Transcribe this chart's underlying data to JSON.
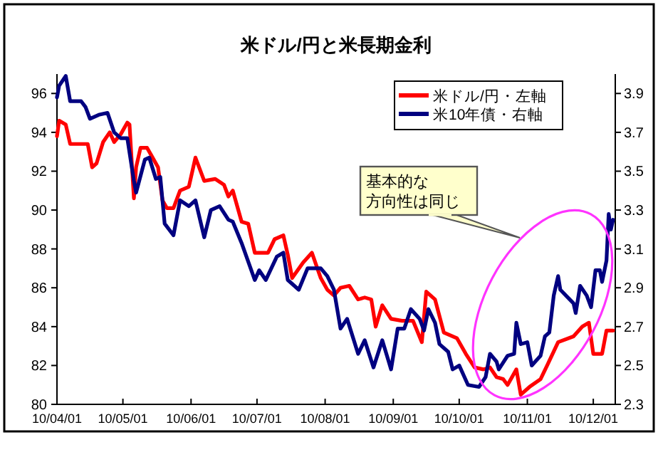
{
  "chart_data": {
    "type": "line",
    "title": "米ドル/円と米長期金利",
    "xlim": [
      "2010-04-01",
      "2010-12-11"
    ],
    "xticks": [
      {
        "value": "2010-04-01",
        "label": "10/04/01"
      },
      {
        "value": "2010-05-01",
        "label": "10/05/01"
      },
      {
        "value": "2010-06-01",
        "label": "10/06/01"
      },
      {
        "value": "2010-07-01",
        "label": "10/07/01"
      },
      {
        "value": "2010-08-01",
        "label": "10/08/01"
      },
      {
        "value": "2010-09-01",
        "label": "10/09/01"
      },
      {
        "value": "2010-10-01",
        "label": "10/10/01"
      },
      {
        "value": "2010-11-01",
        "label": "10/11/01"
      },
      {
        "value": "2010-12-01",
        "label": "10/12/01"
      }
    ],
    "ylim": [
      80,
      97
    ],
    "yticks": [
      80,
      82,
      84,
      86,
      88,
      90,
      92,
      94,
      96
    ],
    "y2lim": [
      2.3,
      4.0
    ],
    "y2ticks": [
      2.3,
      2.5,
      2.7,
      2.9,
      3.1,
      3.3,
      3.5,
      3.7,
      3.9
    ],
    "grid": false,
    "legend": "top right",
    "marker": "none",
    "line_style": "solid",
    "annotations": [
      "基本的な",
      "方向性は同じ"
    ],
    "series": [
      {
        "name": "米ドル/円・左軸",
        "color": "#ff0000",
        "x": [
          "2010-04-01",
          "2010-04-02",
          "2010-04-05",
          "2010-04-07",
          "2010-04-15",
          "2010-04-17",
          "2010-04-19",
          "2010-04-22",
          "2010-04-25",
          "2010-04-27",
          "2010-04-30",
          "2010-05-03",
          "2010-05-04",
          "2010-05-06",
          "2010-05-07",
          "2010-05-09",
          "2010-05-12",
          "2010-05-14",
          "2010-05-17",
          "2010-05-19",
          "2010-05-21",
          "2010-05-24",
          "2010-05-27",
          "2010-05-31",
          "2010-06-03",
          "2010-06-07",
          "2010-06-12",
          "2010-06-16",
          "2010-06-18",
          "2010-06-20",
          "2010-06-24",
          "2010-06-27",
          "2010-06-30",
          "2010-07-06",
          "2010-07-09",
          "2010-07-13",
          "2010-07-15",
          "2010-07-17",
          "2010-07-22",
          "2010-07-26",
          "2010-07-30",
          "2010-08-02",
          "2010-08-05",
          "2010-08-08",
          "2010-08-12",
          "2010-08-16",
          "2010-08-19",
          "2010-08-22",
          "2010-08-24",
          "2010-08-27",
          "2010-08-31",
          "2010-09-05",
          "2010-09-10",
          "2010-09-14",
          "2010-09-16",
          "2010-09-20",
          "2010-09-24",
          "2010-09-30",
          "2010-10-04",
          "2010-10-08",
          "2010-10-12",
          "2010-10-15",
          "2010-10-18",
          "2010-10-21",
          "2010-10-23",
          "2010-10-27",
          "2010-10-29",
          "2010-11-02",
          "2010-11-07",
          "2010-11-10",
          "2010-11-15",
          "2010-11-22",
          "2010-11-26",
          "2010-11-29",
          "2010-12-01",
          "2010-12-05",
          "2010-12-07",
          "2010-12-10"
        ],
        "values": [
          93.8,
          94.6,
          94.4,
          93.4,
          93.4,
          92.2,
          92.4,
          93.5,
          94.0,
          93.5,
          93.9,
          94.5,
          94.4,
          90.6,
          92.2,
          93.2,
          93.2,
          92.8,
          92.2,
          90.5,
          90.1,
          90.1,
          91.0,
          91.2,
          92.7,
          91.5,
          91.6,
          91.3,
          90.7,
          91.0,
          89.4,
          89.3,
          87.8,
          87.8,
          88.5,
          88.7,
          87.7,
          86.5,
          87.3,
          87.8,
          86.5,
          85.9,
          85.6,
          86.0,
          86.1,
          85.4,
          85.5,
          85.4,
          84.0,
          85.1,
          84.4,
          84.3,
          84.3,
          83.2,
          85.8,
          85.4,
          83.7,
          83.4,
          82.6,
          81.9,
          81.8,
          81.9,
          81.4,
          81.3,
          81.0,
          81.8,
          80.5,
          80.9,
          81.3,
          82.0,
          83.2,
          83.5,
          84.0,
          84.2,
          82.6,
          82.6,
          83.8,
          83.8
        ]
      },
      {
        "name": "米10年債・右軸",
        "color": "#000080",
        "axis": "y2",
        "x": [
          "2010-04-01",
          "2010-04-02",
          "2010-04-05",
          "2010-04-07",
          "2010-04-12",
          "2010-04-14",
          "2010-04-16",
          "2010-04-20",
          "2010-04-24",
          "2010-04-27",
          "2010-04-30",
          "2010-05-03",
          "2010-05-06",
          "2010-05-07",
          "2010-05-11",
          "2010-05-13",
          "2010-05-16",
          "2010-05-18",
          "2010-05-20",
          "2010-05-24",
          "2010-05-27",
          "2010-05-31",
          "2010-06-03",
          "2010-06-07",
          "2010-06-10",
          "2010-06-14",
          "2010-06-18",
          "2010-06-20",
          "2010-06-24",
          "2010-06-30",
          "2010-07-02",
          "2010-07-05",
          "2010-07-10",
          "2010-07-13",
          "2010-07-15",
          "2010-07-20",
          "2010-07-24",
          "2010-07-30",
          "2010-08-02",
          "2010-08-05",
          "2010-08-08",
          "2010-08-11",
          "2010-08-16",
          "2010-08-19",
          "2010-08-23",
          "2010-08-27",
          "2010-08-31",
          "2010-09-03",
          "2010-09-06",
          "2010-09-09",
          "2010-09-13",
          "2010-09-15",
          "2010-09-17",
          "2010-09-20",
          "2010-09-22",
          "2010-09-26",
          "2010-09-28",
          "2010-10-01",
          "2010-10-05",
          "2010-10-10",
          "2010-10-13",
          "2010-10-15",
          "2010-10-18",
          "2010-10-19",
          "2010-10-23",
          "2010-10-26",
          "2010-10-27",
          "2010-10-29",
          "2010-11-01",
          "2010-11-03",
          "2010-11-07",
          "2010-11-09",
          "2010-11-11",
          "2010-11-13",
          "2010-11-15",
          "2010-11-16",
          "2010-11-22",
          "2010-11-23",
          "2010-11-25",
          "2010-11-28",
          "2010-11-30",
          "2010-12-02",
          "2010-12-04",
          "2010-12-05",
          "2010-12-07",
          "2010-12-08",
          "2010-12-09",
          "2010-12-10"
        ],
        "values": [
          3.88,
          3.94,
          3.99,
          3.86,
          3.86,
          3.83,
          3.77,
          3.79,
          3.8,
          3.7,
          3.67,
          3.67,
          3.45,
          3.39,
          3.56,
          3.57,
          3.46,
          3.47,
          3.23,
          3.17,
          3.35,
          3.32,
          3.35,
          3.16,
          3.3,
          3.32,
          3.25,
          3.24,
          3.13,
          2.94,
          2.99,
          2.94,
          3.06,
          3.08,
          2.94,
          2.89,
          3.0,
          3.0,
          2.96,
          2.89,
          2.69,
          2.74,
          2.56,
          2.63,
          2.49,
          2.63,
          2.48,
          2.69,
          2.69,
          2.79,
          2.74,
          2.68,
          2.79,
          2.72,
          2.61,
          2.57,
          2.48,
          2.5,
          2.4,
          2.39,
          2.44,
          2.56,
          2.52,
          2.48,
          2.55,
          2.56,
          2.72,
          2.61,
          2.62,
          2.5,
          2.55,
          2.65,
          2.67,
          2.86,
          2.96,
          2.89,
          2.82,
          2.77,
          2.91,
          2.86,
          2.8,
          2.99,
          2.99,
          2.93,
          3.04,
          3.28,
          3.2,
          3.25
        ]
      }
    ]
  }
}
